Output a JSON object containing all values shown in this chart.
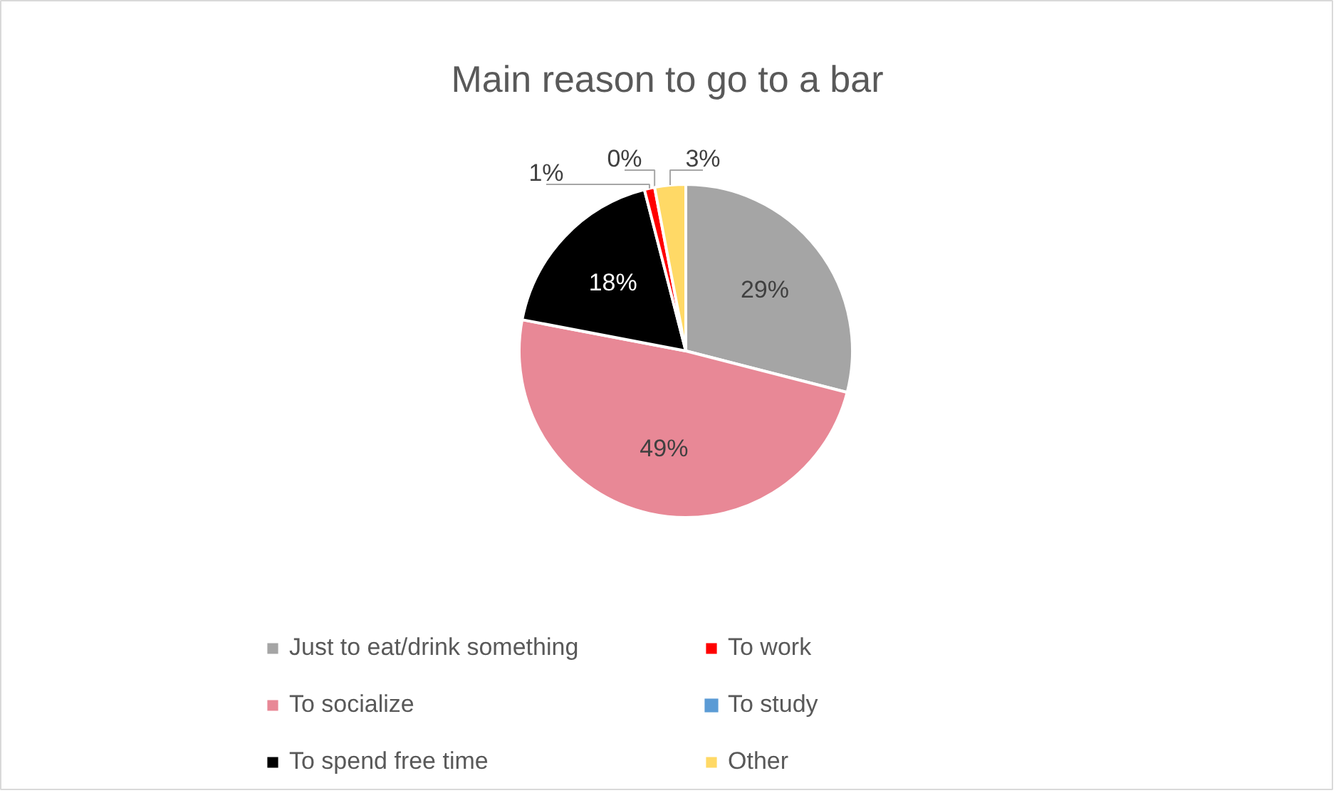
{
  "chart_data": {
    "type": "pie",
    "title": "Main reason to go to a bar",
    "categories": [
      "Just to eat/drink something",
      "To socialize",
      "To spend free time",
      "To work",
      "To study",
      "Other"
    ],
    "values": [
      29,
      49,
      18,
      1,
      0,
      3
    ],
    "colors": [
      "#a5a5a5",
      "#e88896",
      "#000000",
      "#ff0000",
      "#5b9bd5",
      "#ffd966"
    ],
    "value_labels": [
      "29%",
      "49%",
      "18%",
      "1%",
      "0%",
      "3%"
    ],
    "legend": "bottom"
  }
}
